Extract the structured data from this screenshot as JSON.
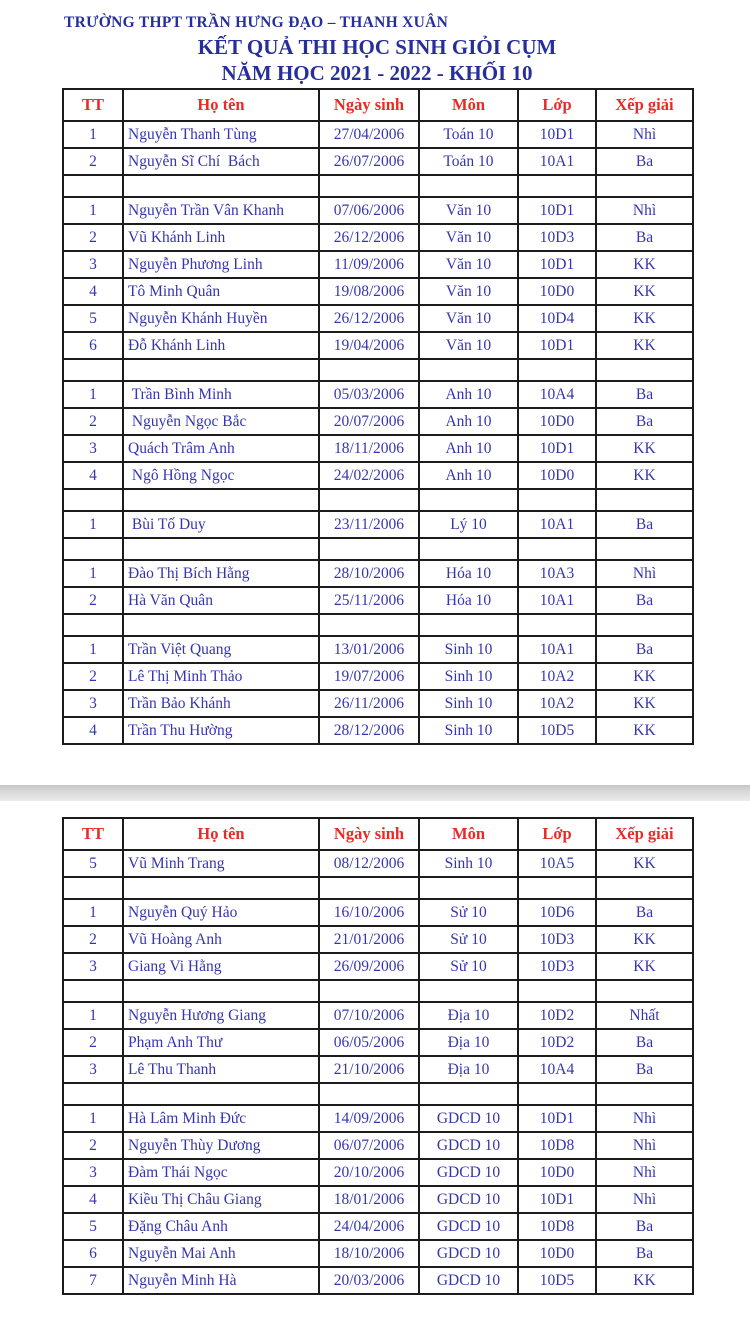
{
  "header": {
    "school_line": "TRƯỜNG THPT TRẦN HƯNG ĐẠO – THANH XUÂN",
    "title_line1": "KẾT QUẢ THI HỌC SINH GIỎI CỤM",
    "title_line2": "NĂM HỌC 2021 - 2022 - KHỐI 10"
  },
  "colors": {
    "title_blue": "#262e9c",
    "body_text_blue": "#3535b0",
    "column_header_red": "#ea2a25",
    "table_border": "#1c1c1c",
    "page_separator_gray": "#d8d8d8"
  },
  "table_headers": [
    "TT",
    "Họ tên",
    "Ngày sinh",
    "Môn",
    "Lớp",
    "Xếp giải"
  ],
  "pages": [
    {
      "rows": [
        [
          "1",
          "Nguyễn Thanh Tùng",
          "27/04/2006",
          "Toán 10",
          "10D1",
          "Nhì"
        ],
        [
          "2",
          "Nguyễn Sĩ Chí  Bách",
          "26/07/2006",
          "Toán 10",
          "10A1",
          "Ba"
        ],
        [
          "",
          "",
          "",
          "",
          "",
          ""
        ],
        [
          "1",
          "Nguyễn Trần Vân Khanh",
          "07/06/2006",
          "Văn 10",
          "10D1",
          "Nhì"
        ],
        [
          "2",
          "Vũ Khánh Linh",
          "26/12/2006",
          "Văn 10",
          "10D3",
          "Ba"
        ],
        [
          "3",
          "Nguyễn Phương Linh",
          "11/09/2006",
          "Văn 10",
          "10D1",
          "KK"
        ],
        [
          "4",
          "Tô Minh Quân",
          "19/08/2006",
          "Văn 10",
          "10D0",
          "KK"
        ],
        [
          "5",
          "Nguyễn Khánh Huyền",
          "26/12/2006",
          "Văn 10",
          "10D4",
          "KK"
        ],
        [
          "6",
          "Đỗ Khánh Linh",
          "19/04/2006",
          "Văn 10",
          "10D1",
          "KK"
        ],
        [
          "",
          "",
          "",
          "",
          "",
          ""
        ],
        [
          "1",
          " Trần Bình Minh",
          "05/03/2006",
          "Anh 10",
          "10A4",
          "Ba"
        ],
        [
          "2",
          " Nguyễn Ngọc Bắc",
          "20/07/2006",
          "Anh 10",
          "10D0",
          "Ba"
        ],
        [
          "3",
          "Quách Trâm Anh",
          "18/11/2006",
          "Anh 10",
          "10D1",
          "KK"
        ],
        [
          "4",
          " Ngô Hồng Ngọc",
          "24/02/2006",
          "Anh 10",
          "10D0",
          "KK"
        ],
        [
          "",
          "",
          "",
          "",
          "",
          ""
        ],
        [
          "1",
          " Bùi Tố Duy",
          "23/11/2006",
          "Lý 10",
          "10A1",
          "Ba"
        ],
        [
          "",
          "",
          "",
          "",
          "",
          ""
        ],
        [
          "1",
          "Đào Thị Bích Hằng",
          "28/10/2006",
          "Hóa 10",
          "10A3",
          "Nhì"
        ],
        [
          "2",
          "Hà Văn Quân",
          "25/11/2006",
          "Hóa 10",
          "10A1",
          "Ba"
        ],
        [
          "",
          "",
          "",
          "",
          "",
          ""
        ],
        [
          "1",
          "Trần Việt Quang",
          "13/01/2006",
          "Sinh 10",
          "10A1",
          "Ba"
        ],
        [
          "2",
          "Lê Thị Minh Thảo",
          "19/07/2006",
          "Sinh 10",
          "10A2",
          "KK"
        ],
        [
          "3",
          "Trần Bảo Khánh",
          "26/11/2006",
          "Sinh 10",
          "10A2",
          "KK"
        ],
        [
          "4",
          "Trần Thu Hường",
          "28/12/2006",
          "Sinh 10",
          "10D5",
          "KK"
        ]
      ]
    },
    {
      "rows": [
        [
          "5",
          "Vũ Minh Trang",
          "08/12/2006",
          "Sinh 10",
          "10A5",
          "KK"
        ],
        [
          "",
          "",
          "",
          "",
          "",
          ""
        ],
        [
          "1",
          "Nguyễn Quý Hảo",
          "16/10/2006",
          "Sử 10",
          "10D6",
          "Ba"
        ],
        [
          "2",
          "Vũ Hoàng Anh",
          "21/01/2006",
          "Sử 10",
          "10D3",
          "KK"
        ],
        [
          "3",
          "Giang Vi Hằng",
          "26/09/2006",
          "Sử 10",
          "10D3",
          "KK"
        ],
        [
          "",
          "",
          "",
          "",
          "",
          ""
        ],
        [
          "1",
          "Nguyễn Hương Giang",
          "07/10/2006",
          "Địa 10",
          "10D2",
          "Nhất"
        ],
        [
          "2",
          "Phạm Anh Thư",
          "06/05/2006",
          "Địa 10",
          "10D2",
          "Ba"
        ],
        [
          "3",
          "Lê Thu Thanh",
          "21/10/2006",
          "Địa 10",
          "10A4",
          "Ba"
        ],
        [
          "",
          "",
          "",
          "",
          "",
          ""
        ],
        [
          "1",
          "Hà Lâm Minh Đức",
          "14/09/2006",
          "GDCD 10",
          "10D1",
          "Nhì"
        ],
        [
          "2",
          "Nguyễn Thùy Dương",
          "06/07/2006",
          "GDCD 10",
          "10D8",
          "Nhì"
        ],
        [
          "3",
          "Đàm Thái Ngọc",
          "20/10/2006",
          "GDCD 10",
          "10D0",
          "Nhì"
        ],
        [
          "4",
          "Kiều Thị Châu Giang",
          "18/01/2006",
          "GDCD 10",
          "10D1",
          "Nhì"
        ],
        [
          "5",
          "Đặng Châu Anh",
          "24/04/2006",
          "GDCD 10",
          "10D8",
          "Ba"
        ],
        [
          "6",
          "Nguyễn Mai Anh",
          "18/10/2006",
          "GDCD 10",
          "10D0",
          "Ba"
        ],
        [
          "7",
          "Nguyễn Minh Hà",
          "20/03/2006",
          "GDCD 10",
          "10D5",
          "KK"
        ]
      ]
    }
  ]
}
